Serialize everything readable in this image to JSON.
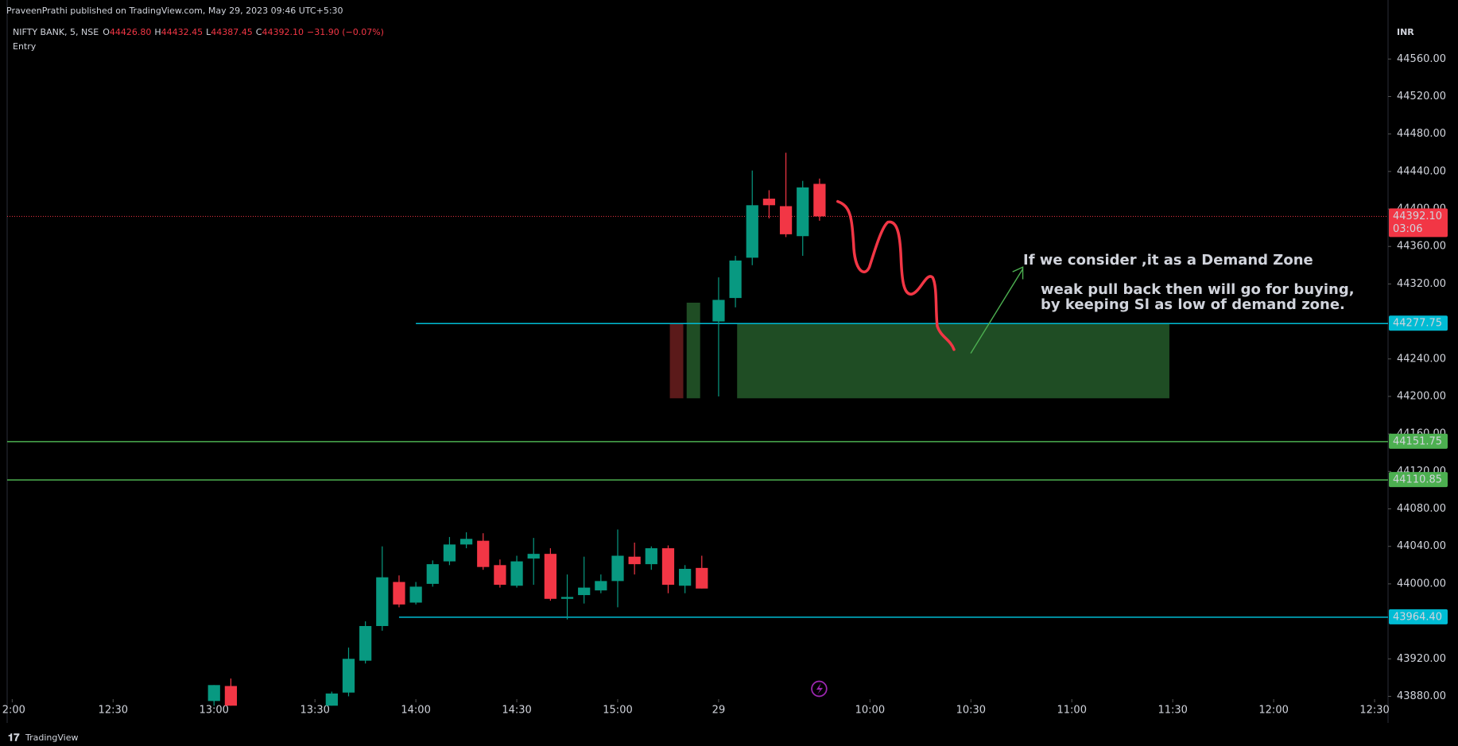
{
  "header": {
    "publisher": "PraveenPrathi published on TradingView.com, May 29, 2023 09:46 UTC+5:30",
    "symbol": "NIFTY BANK, 5, NSE",
    "ohlc": [
      {
        "label": "O",
        "value": "44426.80"
      },
      {
        "label": "H",
        "value": "44432.45"
      },
      {
        "label": "L",
        "value": "44387.45"
      },
      {
        "label": "C",
        "value": "44392.10"
      }
    ],
    "change": "−31.90 (−0.07%)",
    "indicator": "Entry",
    "currency": "INR"
  },
  "footer": "TradingView",
  "chart_data": {
    "type": "candlestick",
    "up_color": "#089981",
    "down_color": "#f23645",
    "xlim": [
      -0.3,
      81.8
    ],
    "ylim": [
      43877,
      44595
    ],
    "xticks": [
      {
        "value": 0,
        "label": "2:00"
      },
      {
        "value": 6,
        "label": "12:30"
      },
      {
        "value": 12,
        "label": "13:00"
      },
      {
        "value": 18,
        "label": "13:30"
      },
      {
        "value": 24,
        "label": "14:00"
      },
      {
        "value": 30,
        "label": "14:30"
      },
      {
        "value": 36,
        "label": "15:00"
      },
      {
        "value": 42,
        "label": "29"
      },
      {
        "value": 51,
        "label": "10:00"
      },
      {
        "value": 57,
        "label": "10:30"
      },
      {
        "value": 63,
        "label": "11:00"
      },
      {
        "value": 69,
        "label": "11:30"
      },
      {
        "value": 75,
        "label": "12:00"
      },
      {
        "value": 81,
        "label": "12:30"
      }
    ],
    "yticks": [
      {
        "value": 44560,
        "label": "44560.00"
      },
      {
        "value": 44520,
        "label": "44520.00"
      },
      {
        "value": 44480,
        "label": "44480.00"
      },
      {
        "value": 44440,
        "label": "44440.00"
      },
      {
        "value": 44400,
        "label": "44400.00"
      },
      {
        "value": 44360,
        "label": "44360.00"
      },
      {
        "value": 44320,
        "label": "44320.00"
      },
      {
        "value": 44240,
        "label": "44240.00"
      },
      {
        "value": 44200,
        "label": "44200.00"
      },
      {
        "value": 44160,
        "label": "44160.00"
      },
      {
        "value": 44120,
        "label": "44120.00"
      },
      {
        "value": 44080,
        "label": "44080.00"
      },
      {
        "value": 44040,
        "label": "44040.00"
      },
      {
        "value": 44000,
        "label": "44000.00"
      },
      {
        "value": 43920,
        "label": "43920.00"
      },
      {
        "value": 43880,
        "label": "43880.00"
      }
    ],
    "candles": [
      {
        "x": 12,
        "open": 43875,
        "high": 43892,
        "low": 43870,
        "close": 43892
      },
      {
        "x": 13,
        "open": 43891,
        "high": 43899,
        "low": 43870,
        "close": 43870
      },
      {
        "x": 19,
        "open": 43870,
        "high": 43885,
        "low": 43870,
        "close": 43883
      },
      {
        "x": 20,
        "open": 43884,
        "high": 43932,
        "low": 43880,
        "close": 43920
      },
      {
        "x": 21,
        "open": 43918,
        "high": 43960,
        "low": 43915,
        "close": 43955
      },
      {
        "x": 22,
        "open": 43955,
        "high": 44040,
        "low": 43950,
        "close": 44007
      },
      {
        "x": 23,
        "open": 44002,
        "high": 44009,
        "low": 43975,
        "close": 43978
      },
      {
        "x": 24,
        "open": 43980,
        "high": 44002,
        "low": 43978,
        "close": 43997
      },
      {
        "x": 25,
        "open": 44000,
        "high": 44025,
        "low": 43997,
        "close": 44021
      },
      {
        "x": 26,
        "open": 44024,
        "high": 44050,
        "low": 44020,
        "close": 44042
      },
      {
        "x": 27,
        "open": 44042,
        "high": 44055,
        "low": 44038,
        "close": 44048
      },
      {
        "x": 28,
        "open": 44046,
        "high": 44054,
        "low": 44015,
        "close": 44018
      },
      {
        "x": 29,
        "open": 44020,
        "high": 44026,
        "low": 43996,
        "close": 43999
      },
      {
        "x": 30,
        "open": 43998,
        "high": 44030,
        "low": 43996,
        "close": 44024
      },
      {
        "x": 31,
        "open": 44027,
        "high": 44049,
        "low": 43999,
        "close": 44032
      },
      {
        "x": 32,
        "open": 44032,
        "high": 44038,
        "low": 43982,
        "close": 43984
      },
      {
        "x": 33,
        "open": 43984,
        "high": 44010,
        "low": 43962,
        "close": 43986
      },
      {
        "x": 34,
        "open": 43988,
        "high": 44029,
        "low": 43979,
        "close": 43996
      },
      {
        "x": 35,
        "open": 43993,
        "high": 44010,
        "low": 43990,
        "close": 44003
      },
      {
        "x": 36,
        "open": 44003,
        "high": 44058,
        "low": 43975,
        "close": 44030
      },
      {
        "x": 37,
        "open": 44029,
        "high": 44044,
        "low": 44010,
        "close": 44021
      },
      {
        "x": 38,
        "open": 44021,
        "high": 44040,
        "low": 44015,
        "close": 44038
      },
      {
        "x": 39,
        "open": 44038,
        "high": 44041,
        "low": 43990,
        "close": 43999
      },
      {
        "x": 40,
        "open": 43998,
        "high": 44020,
        "low": 43990,
        "close": 44016
      },
      {
        "x": 41,
        "open": 44017,
        "high": 44030,
        "low": 43995,
        "close": 43995
      },
      {
        "x": 42,
        "open": 44280,
        "high": 44327,
        "low": 44200,
        "close": 44303
      },
      {
        "x": 43,
        "open": 44305,
        "high": 44350,
        "low": 44295,
        "close": 44345
      },
      {
        "x": 44,
        "open": 44348,
        "high": 44441,
        "low": 44340,
        "close": 44404
      },
      {
        "x": 45,
        "open": 44411,
        "high": 44420,
        "low": 44390,
        "close": 44404
      },
      {
        "x": 46,
        "open": 44403,
        "high": 44460,
        "low": 44370,
        "close": 44373
      },
      {
        "x": 47,
        "open": 44371,
        "high": 44430,
        "low": 44350,
        "close": 44423
      },
      {
        "x": 48,
        "open": 44426.8,
        "high": 44432.45,
        "low": 44387.45,
        "close": 44392.1
      }
    ],
    "zones": [
      {
        "x0": 39.1,
        "x1": 39.9,
        "top": 44277.75,
        "bottom": 44198,
        "color": "#5b1a1a"
      },
      {
        "x0": 40.1,
        "x1": 40.9,
        "top": 44300,
        "bottom": 44198,
        "color": "#1f4d24"
      },
      {
        "x0": 43.1,
        "x1": 68.8,
        "top": 44277.75,
        "bottom": 44198,
        "color": "#1f4d24"
      }
    ],
    "levels": [
      {
        "value": 44392.1,
        "label": "44392.10",
        "sublabel": "03:06",
        "color": "#f23645",
        "from": -0.3,
        "dotted": true
      },
      {
        "value": 44277.75,
        "label": "44277.75",
        "color": "#00bcd4",
        "from": 24
      },
      {
        "value": 44151.75,
        "label": "44151.75",
        "color": "#4caf50",
        "from": -0.3
      },
      {
        "value": 44110.85,
        "label": "44110.85",
        "color": "#4caf50",
        "from": -0.3
      },
      {
        "value": 43964.4,
        "label": "43964.40",
        "color": "#00bcd4",
        "from": 23
      }
    ],
    "annotations": [
      "If we consider ,it as a Demand Zone",
      "weak pull back then will go for buying,",
      "by keeping Sl as low of demand zone."
    ]
  }
}
